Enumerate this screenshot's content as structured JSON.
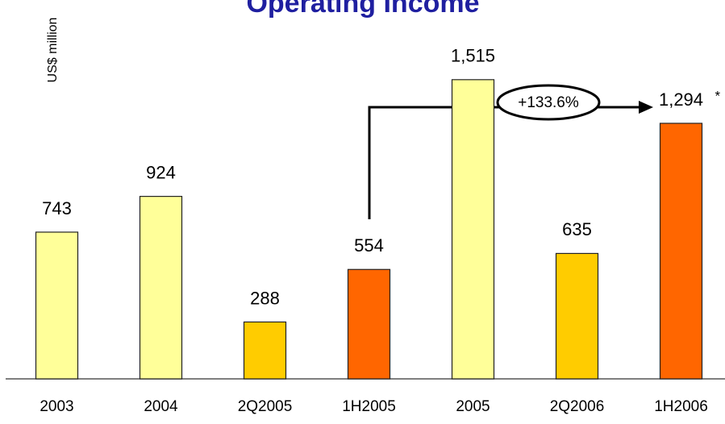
{
  "chart_data": {
    "type": "bar",
    "title": "Operating Income",
    "y_label": "US$ million",
    "categories": [
      "2003",
      "2004",
      "2Q2005",
      "1H2005",
      "2005",
      "2Q2006",
      "1H2006"
    ],
    "values": [
      743,
      924,
      288,
      554,
      1515,
      635,
      1294
    ],
    "value_labels": [
      "743",
      "924",
      "288",
      "554",
      "1,515",
      "635",
      "1,294"
    ],
    "colors": [
      "#ffff99",
      "#ffff99",
      "#ffcc00",
      "#ff6600",
      "#ffff99",
      "#ffcc00",
      "#ff6600"
    ],
    "ylim": [
      0,
      1900
    ],
    "annotations": [
      "+133.6%",
      "*"
    ]
  }
}
